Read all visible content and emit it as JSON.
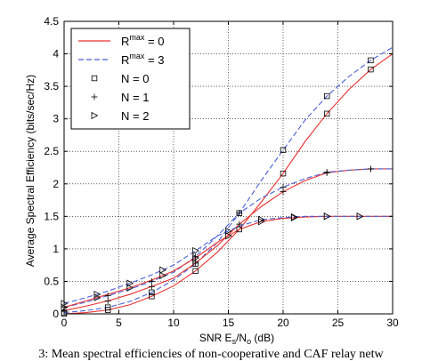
{
  "chart_data": {
    "type": "line",
    "xlabel": "SNR E",
    "xlabel_sub1": "s",
    "xlabel_mid": "/N",
    "xlabel_sub2": "o",
    "xlabel_tail": " (dB)",
    "ylabel": "Average Spectral Efficiency (bits/sec/Hz)",
    "xlim": [
      0,
      30
    ],
    "ylim": [
      0,
      4.5
    ],
    "xticks": [
      "0",
      "5",
      "10",
      "15",
      "20",
      "25",
      "30"
    ],
    "yticks": [
      "0",
      "0.5",
      "1",
      "1.5",
      "2",
      "2.5",
      "3",
      "3.5",
      "4",
      "4.5"
    ],
    "legend_position": "top-left",
    "legend": [
      {
        "label_main": "R",
        "label_sup": "max",
        "label_tail": " = 0",
        "style": "solid",
        "color": "#e8312f"
      },
      {
        "label_main": "R",
        "label_sup": "max",
        "label_tail": " = 3",
        "style": "dashed",
        "color": "#4a5fd8"
      },
      {
        "label": "N = 0",
        "marker": "square"
      },
      {
        "label": "N = 1",
        "marker": "plus"
      },
      {
        "label": "N = 2",
        "marker": "triangle-right"
      }
    ],
    "series": [
      {
        "rmax": "0",
        "n": "0",
        "style": "solid",
        "color": "#e8312f",
        "marker": "square",
        "x": [
          0,
          2,
          4,
          6,
          8,
          10,
          12,
          14,
          16,
          18,
          20,
          22,
          24,
          26,
          28,
          30
        ],
        "y": [
          0.0,
          0.02,
          0.06,
          0.14,
          0.27,
          0.43,
          0.66,
          0.95,
          1.3,
          1.72,
          2.16,
          2.65,
          3.08,
          3.45,
          3.76,
          4.0
        ],
        "marker_x": [
          0,
          4,
          8,
          12,
          16,
          20,
          24,
          28
        ]
      },
      {
        "rmax": "3",
        "n": "0",
        "style": "dashed",
        "color": "#4a5fd8",
        "marker": "square",
        "x": [
          0,
          2,
          4,
          6,
          8,
          10,
          12,
          14,
          16,
          18,
          20,
          22,
          24,
          26,
          28,
          30
        ],
        "y": [
          0.02,
          0.05,
          0.1,
          0.19,
          0.33,
          0.52,
          0.77,
          1.1,
          1.55,
          2.05,
          2.52,
          2.98,
          3.35,
          3.65,
          3.9,
          4.1
        ],
        "marker_x": [
          0,
          4,
          8,
          12,
          16,
          20,
          24,
          28
        ]
      },
      {
        "rmax": "0",
        "n": "1",
        "style": "solid",
        "color": "#e8312f",
        "marker": "plus",
        "x": [
          0,
          2,
          4,
          6,
          8,
          10,
          12,
          14,
          16,
          18,
          20,
          22,
          24,
          26,
          28,
          30
        ],
        "y": [
          0.05,
          0.12,
          0.2,
          0.3,
          0.42,
          0.55,
          0.78,
          1.05,
          1.38,
          1.65,
          1.88,
          2.05,
          2.17,
          2.21,
          2.23,
          2.23
        ],
        "marker_x": [
          0,
          4,
          8,
          12,
          16,
          20,
          24,
          28
        ]
      },
      {
        "rmax": "3",
        "n": "1",
        "style": "dashed",
        "color": "#4a5fd8",
        "marker": "plus",
        "x": [
          0,
          2,
          4,
          6,
          8,
          10,
          12,
          14,
          16,
          18,
          20,
          22,
          24,
          26,
          28,
          30
        ],
        "y": [
          0.1,
          0.18,
          0.28,
          0.38,
          0.5,
          0.64,
          0.88,
          1.2,
          1.55,
          1.78,
          1.95,
          2.08,
          2.18,
          2.21,
          2.23,
          2.23
        ],
        "marker_x": [
          0,
          4,
          8,
          12,
          16,
          20,
          24,
          28
        ]
      },
      {
        "rmax": "0",
        "n": "2",
        "style": "solid",
        "color": "#e8312f",
        "marker": "triangle-right",
        "x": [
          0,
          2,
          4,
          6,
          8,
          10,
          12,
          14,
          16,
          18,
          20,
          22,
          24,
          26,
          28,
          30
        ],
        "y": [
          0.1,
          0.2,
          0.3,
          0.4,
          0.52,
          0.66,
          0.86,
          1.1,
          1.3,
          1.42,
          1.47,
          1.49,
          1.5,
          1.5,
          1.5,
          1.5
        ],
        "marker_x": [
          0,
          3,
          6,
          9,
          12,
          15,
          18,
          21,
          24,
          27
        ]
      },
      {
        "rmax": "3",
        "n": "2",
        "style": "dashed",
        "color": "#4a5fd8",
        "marker": "triangle-right",
        "x": [
          0,
          2,
          4,
          6,
          8,
          10,
          12,
          14,
          16,
          18,
          20,
          22,
          24,
          26,
          28,
          30
        ],
        "y": [
          0.16,
          0.25,
          0.35,
          0.47,
          0.6,
          0.75,
          0.97,
          1.2,
          1.35,
          1.45,
          1.48,
          1.5,
          1.5,
          1.5,
          1.5,
          1.5
        ],
        "marker_x": [
          0,
          3,
          6,
          9,
          12,
          15,
          18,
          21,
          24,
          27
        ]
      }
    ]
  },
  "caption": "3: Mean spectral efficiencies of non-cooperative and CAF relay netw"
}
